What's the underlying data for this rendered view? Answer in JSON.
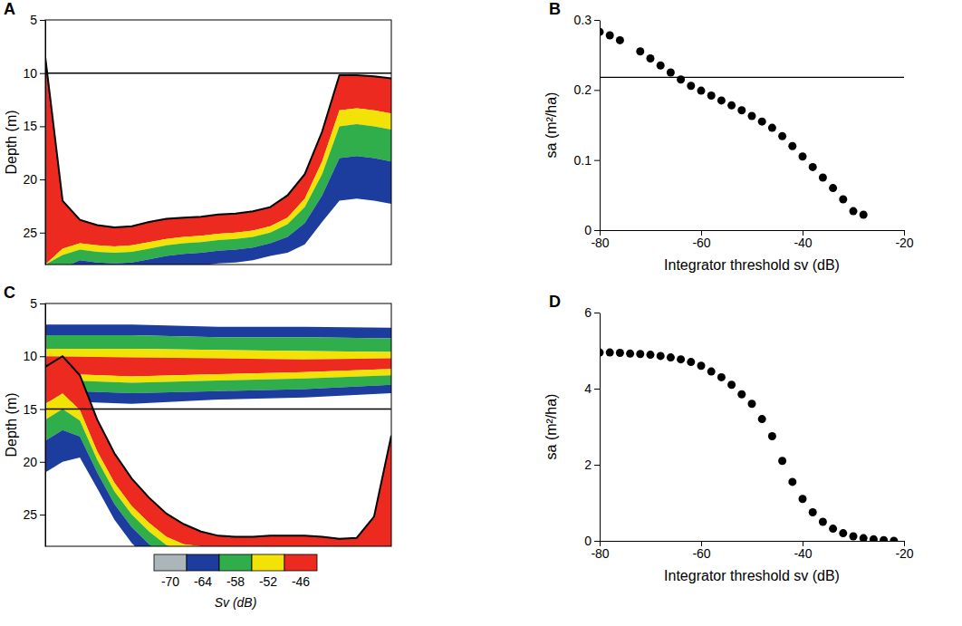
{
  "chart_data": [
    {
      "type": "echogram",
      "panel": "A",
      "y_label": "Depth (m)",
      "tick_labels": "y",
      "x": [
        0,
        5,
        10,
        15,
        20,
        25,
        30,
        35,
        40,
        45,
        50,
        55,
        60,
        65,
        70,
        75,
        80,
        85,
        90,
        95,
        100
      ],
      "xlim": [
        0,
        100
      ],
      "ylim": [
        5,
        28
      ],
      "yticks": [
        5,
        10,
        15,
        20,
        25
      ],
      "series": [
        {
          "color": "#000000",
          "values": [
            8.5,
            22,
            23.8,
            24.3,
            24.5,
            24.4,
            24.0,
            23.7,
            23.6,
            23.5,
            23.3,
            23.2,
            23.0,
            22.6,
            21.5,
            19.5,
            15.5,
            10.2,
            10.2,
            10.3,
            10.5
          ]
        }
      ],
      "seabed": [
        {
          "sv": -46,
          "values": [
            19.5,
            4.5,
            2.2,
            1.9,
            1.8,
            1.8,
            1.9,
            1.9,
            1.8,
            1.8,
            1.8,
            1.8,
            1.8,
            1.8,
            2.1,
            2.3,
            2.8,
            3.3,
            3.1,
            3.2,
            3.3
          ]
        },
        {
          "sv": -52,
          "values": [
            0,
            0.6,
            0.6,
            0.6,
            0.6,
            0.6,
            0.6,
            0.6,
            0.6,
            0.6,
            0.6,
            0.6,
            0.6,
            0.6,
            0.6,
            0.8,
            1.2,
            1.5,
            1.5,
            1.5,
            1.5
          ]
        },
        {
          "sv": -58,
          "values": [
            0,
            1.2,
            1.0,
            1.0,
            1.0,
            1.0,
            1.0,
            1.0,
            1.0,
            1.0,
            1.0,
            1.0,
            1.0,
            1.0,
            1.2,
            1.5,
            2,
            3,
            3,
            3,
            3
          ]
        },
        {
          "sv": -64,
          "values": [
            0,
            1.5,
            1.2,
            1.2,
            1.2,
            1.2,
            1.2,
            1.2,
            1.2,
            1.2,
            1.2,
            1.2,
            1.2,
            1.2,
            1.5,
            2,
            2.5,
            4,
            4,
            4,
            4
          ]
        }
      ],
      "reference_line": 10
    },
    {
      "type": "scatter",
      "panel": "B",
      "x_label": "Integrator threshold sv (dB)",
      "y_label": "sa (m²/ha)",
      "color": "#000000",
      "marker": "circle",
      "x": [
        -80,
        -78,
        -76,
        -72,
        -70,
        -68,
        -66,
        -64,
        -62,
        -60,
        -58,
        -56,
        -54,
        -52,
        -50,
        -48,
        -46,
        -44,
        -42,
        -40,
        -38,
        -36,
        -34,
        -32,
        -30,
        -28
      ],
      "values": [
        0.283,
        0.278,
        0.271,
        0.255,
        0.245,
        0.235,
        0.225,
        0.215,
        0.206,
        0.199,
        0.192,
        0.185,
        0.178,
        0.171,
        0.163,
        0.155,
        0.146,
        0.134,
        0.12,
        0.105,
        0.09,
        0.075,
        0.06,
        0.044,
        0.027,
        0.022
      ],
      "xlim": [
        -80,
        -20
      ],
      "xticks": [
        -80,
        -60,
        -40,
        -20
      ],
      "ylim": [
        0,
        0.3
      ],
      "yticks": [
        0,
        0.1,
        0.2,
        0.3
      ],
      "reference_line": 0.218
    },
    {
      "type": "echogram",
      "panel": "C",
      "y_label": "Depth (m)",
      "tick_labels": "y",
      "x": [
        0,
        5,
        10,
        15,
        20,
        25,
        30,
        35,
        40,
        45,
        50,
        55,
        60,
        65,
        70,
        75,
        80,
        85,
        90,
        95,
        100
      ],
      "xlim": [
        0,
        100
      ],
      "ylim": [
        5,
        28
      ],
      "yticks": [
        5,
        10,
        15,
        20,
        25
      ],
      "series": [
        {
          "color": "#000000",
          "values": [
            11,
            10,
            11.8,
            16,
            19.2,
            21.6,
            23.4,
            24.9,
            25.9,
            26.6,
            27.0,
            27.1,
            27.1,
            27.0,
            27.0,
            27.0,
            27.1,
            27.3,
            27.2,
            25.2,
            17.5
          ]
        }
      ],
      "seabed": [
        {
          "sv": -46,
          "values": [
            3.5,
            3.5,
            3.3,
            3.0,
            2.8,
            2.6,
            2.4,
            2.2,
            1.9,
            1.4,
            1.0,
            1.0,
            1.0,
            1.0,
            1.0,
            1.0,
            0.9,
            0.8,
            0.9,
            3,
            10.5
          ]
        },
        {
          "sv": -52,
          "values": [
            1.5,
            1.5,
            1,
            0.8,
            0.8,
            0.8,
            0.8,
            0.8,
            0.6,
            0.6,
            0.5,
            0.5,
            0.5,
            0.5,
            0.5,
            0.5,
            0.5,
            0.5,
            0.5,
            0.8,
            1
          ]
        },
        {
          "sv": -58,
          "values": [
            2,
            2,
            1.5,
            1.2,
            1.2,
            1.2,
            1.2,
            1,
            1,
            1,
            1,
            1,
            1,
            1,
            1,
            1,
            1,
            1,
            1,
            1,
            1
          ]
        },
        {
          "sv": -64,
          "values": [
            3,
            3,
            2,
            1.5,
            1.5,
            1.5,
            1.5,
            1.5,
            1.5,
            1.5,
            1.5,
            1.5,
            1.5,
            1.5,
            1.5,
            1.5,
            1.5,
            1.5,
            1.5,
            1.5,
            1.5
          ]
        }
      ],
      "school": {
        "x": [
          0,
          25,
          50,
          75,
          100
        ],
        "base": [
          7,
          7,
          7.2,
          7.2,
          7.3
        ],
        "bands": [
          {
            "sv": -64,
            "values": [
              1,
              1,
              1,
              1,
              1
            ]
          },
          {
            "sv": -58,
            "values": [
              1.3,
              1.3,
              1.2,
              1.3,
              1.3
            ]
          },
          {
            "sv": -52,
            "values": [
              0.7,
              0.8,
              0.8,
              0.8,
              0.6
            ]
          },
          {
            "sv": -46,
            "values": [
              1.6,
              1.8,
              1.5,
              1.2,
              1.0
            ]
          },
          {
            "sv": -52,
            "values": [
              0.6,
              0.6,
              0.6,
              0.6,
              0.6
            ]
          },
          {
            "sv": -58,
            "values": [
              1,
              1,
              1,
              1,
              0.9
            ]
          },
          {
            "sv": -64,
            "values": [
              1,
              1,
              0.8,
              0.8,
              0.8
            ]
          }
        ]
      },
      "reference_line": 15
    },
    {
      "type": "scatter",
      "panel": "D",
      "x_label": "Integrator threshold sv (dB)",
      "y_label": "sa (m²/ha)",
      "color": "#000000",
      "marker": "circle",
      "x": [
        -80,
        -78,
        -76,
        -74,
        -72,
        -70,
        -68,
        -66,
        -64,
        -62,
        -60,
        -58,
        -56,
        -54,
        -52,
        -50,
        -48,
        -46,
        -44,
        -42,
        -40,
        -38,
        -36,
        -34,
        -32,
        -30,
        -28,
        -26,
        -24,
        -22
      ],
      "values": [
        4.95,
        4.95,
        4.94,
        4.92,
        4.91,
        4.89,
        4.86,
        4.82,
        4.77,
        4.7,
        4.6,
        4.45,
        4.3,
        4.1,
        3.85,
        3.6,
        3.2,
        2.75,
        2.1,
        1.55,
        1.1,
        0.75,
        0.5,
        0.32,
        0.2,
        0.12,
        0.07,
        0.04,
        0.02,
        0
      ],
      "xlim": [
        -80,
        -20
      ],
      "xticks": [
        -80,
        -60,
        -40,
        -20
      ],
      "ylim": [
        0,
        6
      ],
      "yticks": [
        0,
        2,
        4,
        6
      ]
    }
  ],
  "colorbar": {
    "label": "Sv (dB)",
    "values": [
      -70,
      -64,
      -58,
      -52,
      -46
    ],
    "colors": [
      "#aab6ba",
      "#1c3d9e",
      "#2fae4b",
      "#f2e205",
      "#ec2a1f"
    ]
  }
}
